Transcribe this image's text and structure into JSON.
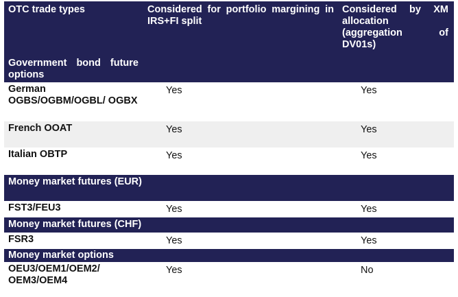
{
  "header": {
    "col1": "OTC trade types",
    "col1_sub": "Government bond future options",
    "col2": "Considered for portfolio margining in IRS+FI split",
    "col3": "Considered by XM allocation (aggregation of DV01s)"
  },
  "rows_gov": [
    {
      "name": "German OGBS/OGBM/OGBL/ OGBX",
      "irs": "Yes",
      "xm": "Yes"
    },
    {
      "name": "French OOAT",
      "irs": "Yes",
      "xm": "Yes"
    },
    {
      "name": "Italian OBTP",
      "irs": "Yes",
      "xm": "Yes"
    }
  ],
  "section_mm_eur": "Money market futures (EUR)",
  "row_fst3": {
    "name": "FST3/FEU3",
    "irs": "Yes",
    "xm": "Yes"
  },
  "section_mm_chf": "Money market futures (CHF)",
  "row_fsr3": {
    "name": "FSR3",
    "irs": "Yes",
    "xm": "Yes"
  },
  "section_mm_opt": "Money market options",
  "row_oeu3": {
    "name": "OEU3/OEM1/OEM2/ OEM3/OEM4",
    "irs": "Yes",
    "xm": "No"
  }
}
